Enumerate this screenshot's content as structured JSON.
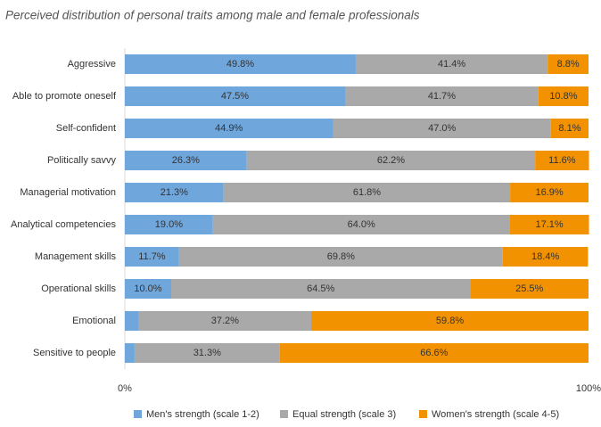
{
  "chart_data": {
    "type": "stacked_bar_horizontal",
    "title": "Perceived distribution of personal traits among male and female professionals",
    "categories": [
      "Aggressive",
      "Able to promote oneself",
      "Self-confident",
      "Politically savvy",
      "Managerial motivation",
      "Analytical competencies",
      "Management skills",
      "Operational skills",
      "Emotional",
      "Sensitive to people"
    ],
    "series": [
      {
        "name": "Men's strength (scale 1-2)",
        "color": "#6fa6dc",
        "values": [
          49.8,
          47.5,
          44.9,
          26.3,
          21.3,
          19.0,
          11.7,
          10.0,
          3.0,
          2.1
        ],
        "value_labels": [
          "49.8%",
          "47.5%",
          "44.9%",
          "26.3%",
          "21.3%",
          "19.0%",
          "11.7%",
          "10.0%",
          null,
          null
        ]
      },
      {
        "name": "Equal strength (scale 3)",
        "color": "#a9a9a9",
        "values": [
          41.4,
          41.7,
          47.0,
          62.2,
          61.8,
          64.0,
          69.8,
          64.5,
          37.2,
          31.3
        ],
        "value_labels": [
          "41.4%",
          "41.7%",
          "47.0%",
          "62.2%",
          "61.8%",
          "64.0%",
          "69.8%",
          "64.5%",
          "37.2%",
          "31.3%"
        ]
      },
      {
        "name": "Women's strength (scale 4-5)",
        "color": "#f39200",
        "values": [
          8.8,
          10.8,
          8.1,
          11.6,
          16.9,
          17.1,
          18.4,
          25.5,
          59.8,
          66.6
        ],
        "value_labels": [
          "8.8%",
          "10.8%",
          "8.1%",
          "11.6%",
          "16.9%",
          "17.1%",
          "18.4%",
          "25.5%",
          "59.8%",
          "66.6%"
        ]
      }
    ],
    "xlim": [
      0,
      100
    ],
    "xticks": [
      {
        "value": 0,
        "label": "0%"
      },
      {
        "value": 100,
        "label": "100%"
      }
    ],
    "legend": "bottom"
  }
}
